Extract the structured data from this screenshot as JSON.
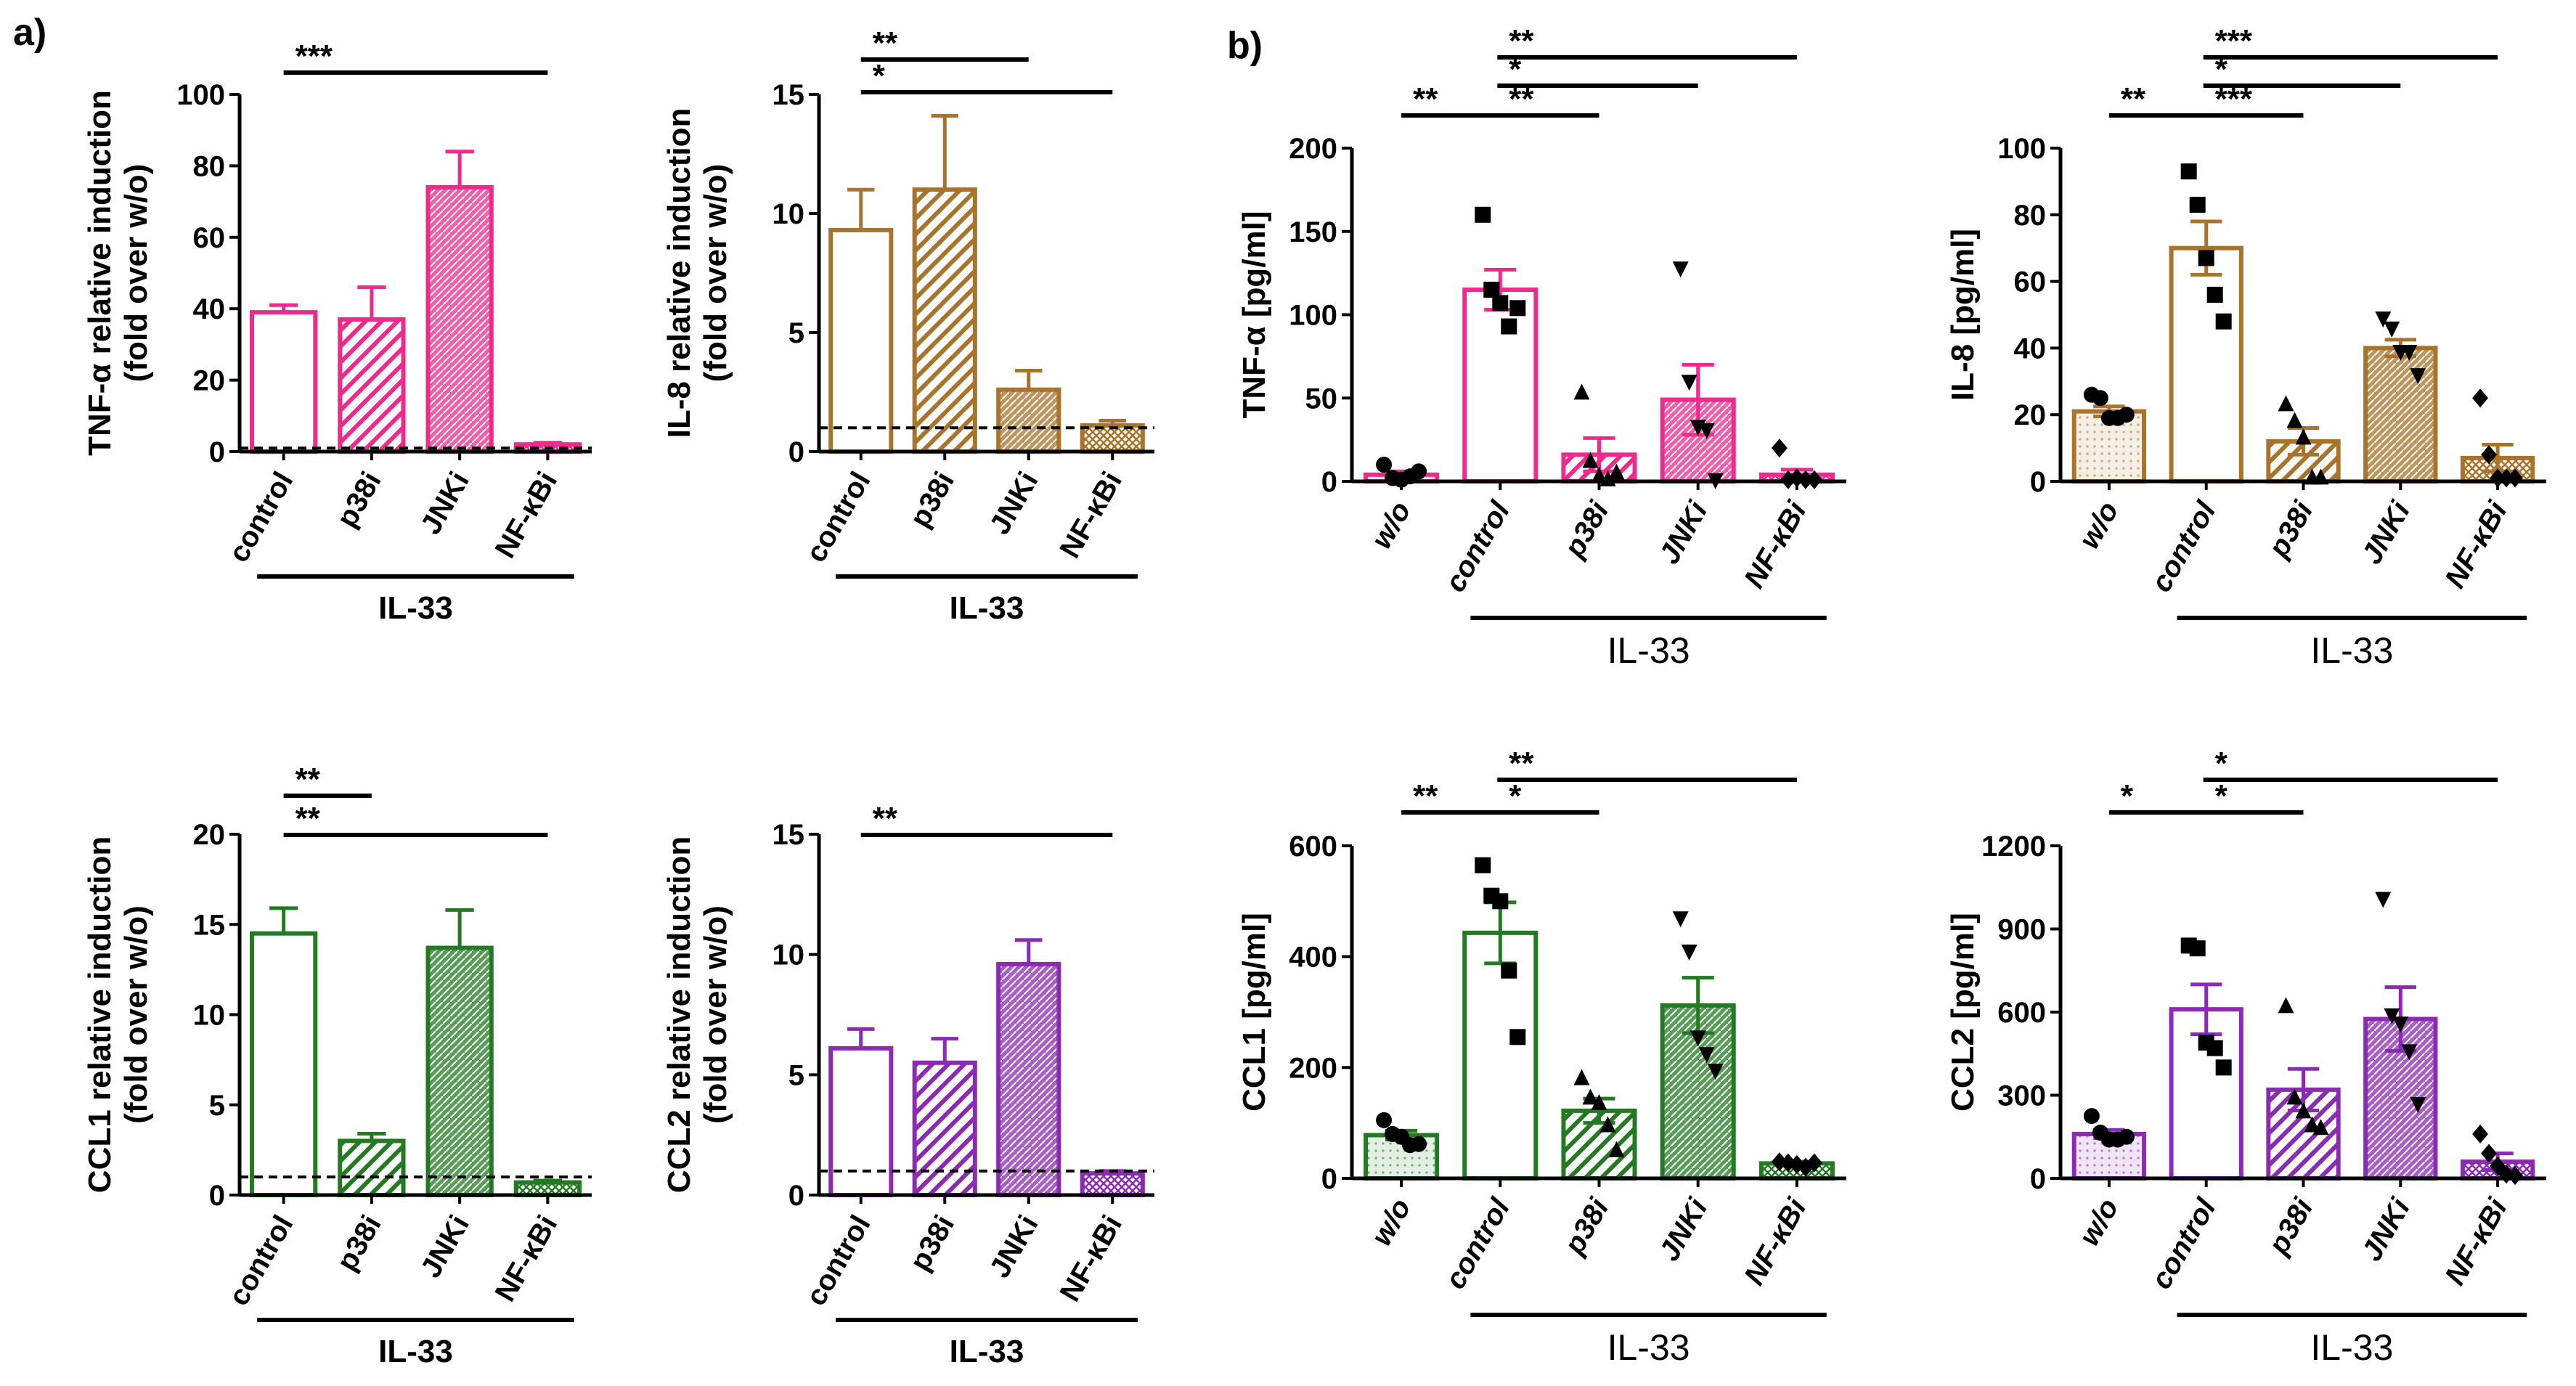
{
  "panel_labels": [
    "a)",
    "b)"
  ],
  "colors": {
    "pink": "#ee2a8c",
    "brown": "#a8732a",
    "green": "#237a23",
    "purple": "#8b2bb3"
  },
  "chart_data": [
    {
      "id": "a1",
      "type": "bar",
      "panel": "a",
      "color": "pink",
      "ylabel": [
        "TNF-α relative induction",
        "(fold over w/o)"
      ],
      "categories": [
        "control",
        "p38i",
        "JNKi",
        "NF-κBi"
      ],
      "patterns": [
        "open",
        "stripe",
        "hatch",
        "grid"
      ],
      "values": [
        39,
        37,
        74,
        2
      ],
      "errors": [
        2,
        9,
        10,
        0.5
      ],
      "ylim": [
        0,
        100
      ],
      "yticks": [
        0,
        20,
        40,
        60,
        80,
        100
      ],
      "baseline": 1,
      "group": {
        "label": "IL-33",
        "from": 0,
        "to": 3
      },
      "significance": [
        {
          "from": 0,
          "to": 3,
          "label": "***"
        }
      ]
    },
    {
      "id": "a2",
      "type": "bar",
      "panel": "a",
      "color": "brown",
      "ylabel": [
        "IL-8 relative induction",
        "(fold over w/o)"
      ],
      "categories": [
        "control",
        "p38i",
        "JNKi",
        "NF-κBi"
      ],
      "patterns": [
        "open",
        "stripe",
        "hatch",
        "grid"
      ],
      "values": [
        9.3,
        11,
        2.6,
        1.1
      ],
      "errors": [
        1.7,
        3.1,
        0.8,
        0.2
      ],
      "ylim": [
        0,
        15
      ],
      "yticks": [
        0,
        5,
        10,
        15
      ],
      "baseline": 1,
      "group": {
        "label": "IL-33",
        "from": 0,
        "to": 3
      },
      "significance": [
        {
          "from": 0,
          "to": 2,
          "label": "**"
        },
        {
          "from": 0,
          "to": 3,
          "label": "*"
        }
      ]
    },
    {
      "id": "a3",
      "type": "bar",
      "panel": "a",
      "color": "green",
      "ylabel": [
        "CCL1 relative induction",
        "(fold over w/o)"
      ],
      "categories": [
        "control",
        "p38i",
        "JNKi",
        "NF-κBi"
      ],
      "patterns": [
        "open",
        "stripe",
        "hatch",
        "grid"
      ],
      "values": [
        14.5,
        3,
        13.7,
        0.7
      ],
      "errors": [
        1.4,
        0.4,
        2.1,
        0.1
      ],
      "ylim": [
        0,
        20
      ],
      "yticks": [
        0,
        5,
        10,
        15,
        20
      ],
      "baseline": 1,
      "group": {
        "label": "IL-33",
        "from": 0,
        "to": 3
      },
      "significance": [
        {
          "from": 0,
          "to": 1,
          "label": "**"
        },
        {
          "from": 0,
          "to": 3,
          "label": "**"
        }
      ]
    },
    {
      "id": "a4",
      "type": "bar",
      "panel": "a",
      "color": "purple",
      "ylabel": [
        "CCL2 relative induction",
        "(fold over w/o)"
      ],
      "categories": [
        "control",
        "p38i",
        "JNKi",
        "NF-κBi"
      ],
      "patterns": [
        "open",
        "stripe",
        "hatch",
        "grid"
      ],
      "values": [
        6.1,
        5.5,
        9.6,
        0.9
      ],
      "errors": [
        0.8,
        1.0,
        1.0,
        0.1
      ],
      "ylim": [
        0,
        15
      ],
      "yticks": [
        0,
        5,
        10,
        15
      ],
      "baseline": 1,
      "group": {
        "label": "IL-33",
        "from": 0,
        "to": 3
      },
      "significance": [
        {
          "from": 0,
          "to": 3,
          "label": "**"
        }
      ]
    },
    {
      "id": "b1",
      "type": "bar",
      "panel": "b",
      "color": "pink",
      "ylabel": [
        "TNF-α [pg/ml]"
      ],
      "categories": [
        "w/o",
        "control",
        "p38i",
        "JNKi",
        "NF-κBi"
      ],
      "patterns": [
        "dots",
        "open",
        "stripe",
        "hatch",
        "grid"
      ],
      "values": [
        4,
        115,
        16,
        49,
        4
      ],
      "errors": [
        2,
        12,
        10,
        21,
        3
      ],
      "ylim": [
        0,
        200
      ],
      "yticks": [
        0,
        50,
        100,
        150,
        200
      ],
      "points": [
        [
          10,
          2,
          1,
          3,
          6
        ],
        [
          160,
          115,
          107,
          93,
          104
        ],
        [
          53,
          12,
          3,
          1,
          5
        ],
        [
          128,
          60,
          33,
          31,
          1
        ],
        [
          20,
          1,
          2,
          1,
          1
        ]
      ],
      "markers": [
        "circle",
        "square",
        "triangle-up",
        "triangle-down",
        "diamond"
      ],
      "group": {
        "label": "IL-33",
        "from": 1,
        "to": 4
      },
      "significance": [
        {
          "from": 1,
          "to": 4,
          "label": "**",
          "row": 0
        },
        {
          "from": 1,
          "to": 3,
          "label": "*",
          "row": 1
        },
        {
          "from": 0,
          "to": 1,
          "label": "**",
          "row": 2
        },
        {
          "from": 1,
          "to": 2,
          "label": "**",
          "row": 2
        }
      ]
    },
    {
      "id": "b2",
      "type": "bar",
      "panel": "b",
      "color": "brown",
      "ylabel": [
        "IL-8 [pg/ml]"
      ],
      "categories": [
        "w/o",
        "control",
        "p38i",
        "JNKi",
        "NF-κBi"
      ],
      "patterns": [
        "dots",
        "open",
        "stripe",
        "hatch",
        "grid"
      ],
      "values": [
        21,
        70,
        12,
        40,
        7
      ],
      "errors": [
        1.5,
        8,
        4,
        2.5,
        4
      ],
      "ylim": [
        0,
        100
      ],
      "yticks": [
        0,
        20,
        40,
        60,
        80,
        100
      ],
      "points": [
        [
          26,
          25,
          19,
          19,
          20
        ],
        [
          93,
          83,
          67,
          56,
          48
        ],
        [
          23,
          18,
          13,
          1,
          1
        ],
        [
          49,
          46,
          39,
          39,
          32
        ],
        [
          25,
          8,
          1,
          1,
          1
        ]
      ],
      "markers": [
        "circle",
        "square",
        "triangle-up",
        "triangle-down",
        "diamond"
      ],
      "group": {
        "label": "IL-33",
        "from": 1,
        "to": 4
      },
      "significance": [
        {
          "from": 1,
          "to": 4,
          "label": "***",
          "row": 0
        },
        {
          "from": 1,
          "to": 3,
          "label": "*",
          "row": 1
        },
        {
          "from": 0,
          "to": 1,
          "label": "**",
          "row": 2
        },
        {
          "from": 1,
          "to": 2,
          "label": "***",
          "row": 2
        }
      ]
    },
    {
      "id": "b3",
      "type": "bar",
      "panel": "b",
      "color": "green",
      "ylabel": [
        "CCL1 [pg/ml]"
      ],
      "categories": [
        "w/o",
        "control",
        "p38i",
        "JNKi",
        "NF-κBi"
      ],
      "patterns": [
        "dots",
        "open",
        "stripe",
        "hatch",
        "grid"
      ],
      "values": [
        78,
        443,
        122,
        312,
        27
      ],
      "errors": [
        8,
        55,
        22,
        50,
        3
      ],
      "ylim": [
        0,
        600
      ],
      "yticks": [
        0,
        200,
        400,
        600
      ],
      "points": [
        [
          105,
          80,
          75,
          60,
          62
        ],
        [
          565,
          510,
          500,
          375,
          255
        ],
        [
          180,
          145,
          135,
          95,
          50
        ],
        [
          470,
          410,
          255,
          225,
          195
        ],
        [
          30,
          28,
          25,
          20,
          28
        ]
      ],
      "markers": [
        "circle",
        "square",
        "triangle-up",
        "triangle-down",
        "diamond"
      ],
      "group": {
        "label": "IL-33",
        "from": 1,
        "to": 4
      },
      "significance": [
        {
          "from": 1,
          "to": 4,
          "label": "**",
          "row": 0
        },
        {
          "from": 0,
          "to": 1,
          "label": "**",
          "row": 1
        },
        {
          "from": 1,
          "to": 2,
          "label": "*",
          "row": 1
        }
      ]
    },
    {
      "id": "b4",
      "type": "bar",
      "panel": "b",
      "color": "purple",
      "ylabel": [
        "CCL2 [pg/ml]"
      ],
      "categories": [
        "w/o",
        "control",
        "p38i",
        "JNKi",
        "NF-κBi"
      ],
      "patterns": [
        "dots",
        "open",
        "stripe",
        "hatch",
        "grid"
      ],
      "values": [
        160,
        610,
        320,
        575,
        60
      ],
      "errors": [
        15,
        90,
        75,
        115,
        30
      ],
      "ylim": [
        0,
        1200
      ],
      "yticks": [
        0,
        300,
        600,
        900,
        1200
      ],
      "points": [
        [
          225,
          165,
          140,
          140,
          150
        ],
        [
          840,
          830,
          490,
          470,
          400
        ],
        [
          620,
          290,
          240,
          190,
          180
        ],
        [
          1010,
          590,
          560,
          460,
          270
        ],
        [
          160,
          90,
          45,
          15,
          10
        ]
      ],
      "markers": [
        "circle",
        "square",
        "triangle-up",
        "triangle-down",
        "diamond"
      ],
      "group": {
        "label": "IL-33",
        "from": 1,
        "to": 4
      },
      "significance": [
        {
          "from": 1,
          "to": 4,
          "label": "*",
          "row": 0
        },
        {
          "from": 0,
          "to": 1,
          "label": "*",
          "row": 1
        },
        {
          "from": 1,
          "to": 2,
          "label": "*",
          "row": 1
        }
      ]
    }
  ]
}
